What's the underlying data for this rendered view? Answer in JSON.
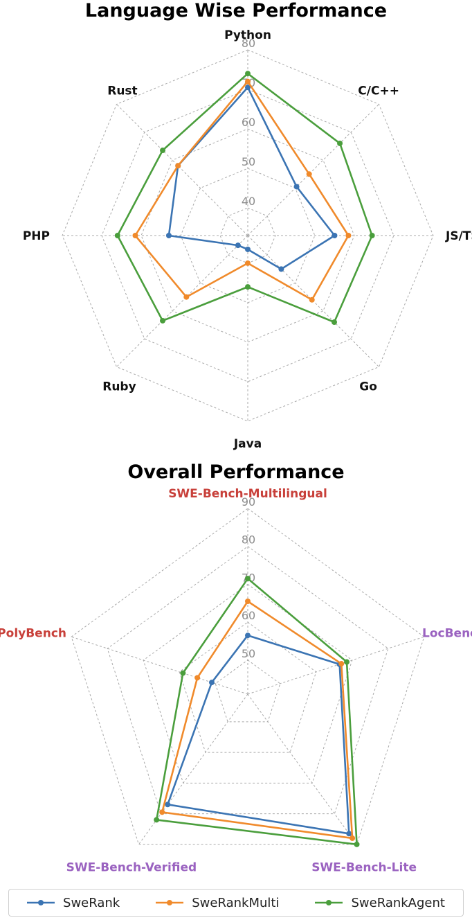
{
  "chart_data": [
    {
      "type": "radar",
      "title": "Language Wise Performance",
      "axes": [
        "Python",
        "C/C++",
        "JS/TS",
        "Go",
        "Java",
        "Ruby",
        "PHP",
        "Rust"
      ],
      "axis_label_color": "#111111",
      "radial_ticks": [
        40,
        50,
        60,
        70,
        80
      ],
      "rlim": [
        33,
        80
      ],
      "series": [
        {
          "name": "SweRank",
          "color": "#3b74b3",
          "values": [
            70.5,
            50.5,
            55,
            45,
            36.5,
            36.5,
            53,
            58
          ]
        },
        {
          "name": "SweRankMulti",
          "color": "#f08a2b",
          "values": [
            72,
            55,
            58.5,
            56,
            40,
            55,
            61.5,
            58
          ]
        },
        {
          "name": "SweRankAgent",
          "color": "#4a9e3c",
          "values": [
            74,
            66,
            64.5,
            64,
            46,
            63.5,
            66,
            63.5
          ]
        }
      ]
    },
    {
      "type": "radar",
      "title": "Overall Performance",
      "axes": [
        "SWE-Bench-Multilingual",
        "LocBench",
        "SWE-Bench-Lite",
        "SWE-Bench-Verified",
        "SWE-PolyBench"
      ],
      "axis_label_colors": [
        "#c8403a",
        "#9a62c0",
        "#9a62c0",
        "#9a62c0",
        "#c8403a"
      ],
      "radial_ticks": [
        50,
        60,
        70,
        80,
        90
      ],
      "rlim": [
        41,
        90
      ],
      "series": [
        {
          "name": "SweRank",
          "color": "#3b74b3",
          "values": [
            56.5,
            66.5,
            86.5,
            77,
            51
          ]
        },
        {
          "name": "SweRankMulti",
          "color": "#f08a2b",
          "values": [
            65.5,
            67,
            88,
            79.5,
            55
          ]
        },
        {
          "name": "SweRankAgent",
          "color": "#4a9e3c",
          "values": [
            71.5,
            68.5,
            90,
            82,
            59
          ]
        }
      ]
    }
  ],
  "legend": {
    "items": [
      {
        "label": "SweRank",
        "color": "#3b74b3"
      },
      {
        "label": "SweRankMulti",
        "color": "#f08a2b"
      },
      {
        "label": "SweRankAgent",
        "color": "#4a9e3c"
      }
    ]
  }
}
